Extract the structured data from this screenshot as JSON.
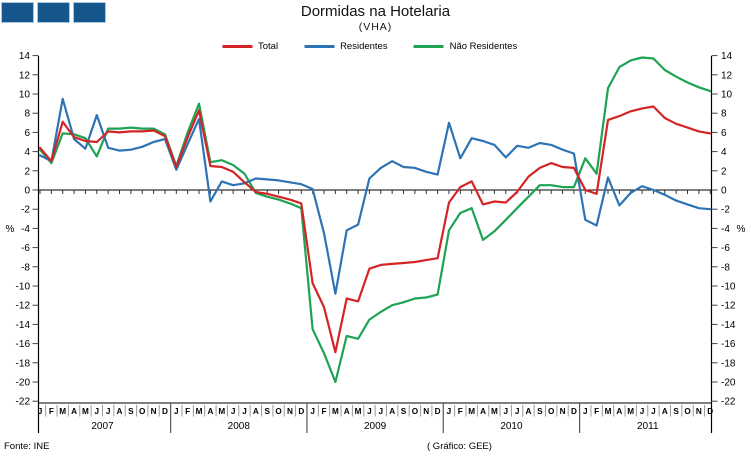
{
  "header": {
    "title": "Dormidas na Hotelaria",
    "subtitle": "(VHA)"
  },
  "legend": [
    {
      "label": "Total",
      "color": "#d42426"
    },
    {
      "label": "Residentes",
      "color": "#2e74b5"
    },
    {
      "label": "Não Residentes",
      "color": "#1ea353"
    }
  ],
  "footer": {
    "source": "Fonte: INE",
    "credit": "( Gráfico: GEE)"
  },
  "decoration": {
    "squares": 3,
    "fill": "#15568d",
    "border": "#a9c7df"
  },
  "chart_data": {
    "type": "line",
    "title": "Dormidas na Hotelaria",
    "subtitle": "(VHA)",
    "ylabel": "%",
    "ylim": [
      -22,
      14
    ],
    "ytick_step": 2,
    "grid": false,
    "legend_position": "top",
    "years": [
      "2007",
      "2008",
      "2009",
      "2010",
      "2011"
    ],
    "month_letters": [
      "J",
      "F",
      "M",
      "A",
      "M",
      "J",
      "J",
      "A",
      "S",
      "O",
      "N",
      "D"
    ],
    "series": [
      {
        "name": "Total",
        "color": "#d42426",
        "values": [
          4.4,
          3.0,
          7.1,
          5.5,
          5.1,
          5.0,
          6.1,
          6.0,
          6.1,
          6.1,
          6.2,
          5.6,
          2.4,
          5.5,
          8.3,
          2.5,
          2.4,
          1.9,
          0.8,
          -0.2,
          -0.4,
          -0.7,
          -1.0,
          -1.4,
          -9.7,
          -12.2,
          -16.9,
          -11.3,
          -11.6,
          -8.2,
          -7.8,
          -7.7,
          -7.6,
          -7.5,
          -7.3,
          -7.1,
          -1.3,
          0.3,
          0.9,
          -1.5,
          -1.2,
          -1.3,
          -0.2,
          1.4,
          2.3,
          2.8,
          2.4,
          2.3,
          0.0,
          -0.4,
          7.3,
          7.7,
          8.2,
          8.5,
          8.7,
          7.5,
          6.9,
          6.5,
          6.1,
          5.9
        ]
      },
      {
        "name": "Residentes",
        "color": "#2e74b5",
        "values": [
          3.6,
          3.0,
          9.5,
          5.3,
          4.3,
          7.8,
          4.4,
          4.1,
          4.2,
          4.5,
          5.0,
          5.3,
          2.1,
          4.8,
          7.4,
          -1.2,
          0.9,
          0.5,
          0.7,
          1.2,
          1.1,
          1.0,
          0.8,
          0.6,
          0.1,
          -4.5,
          -10.8,
          -4.2,
          -3.6,
          1.2,
          2.3,
          3.0,
          2.4,
          2.3,
          1.9,
          1.6,
          7.0,
          3.3,
          5.4,
          5.1,
          4.7,
          3.4,
          4.6,
          4.4,
          4.9,
          4.7,
          4.2,
          3.8,
          -3.1,
          -3.7,
          1.3,
          -1.6,
          -0.3,
          0.4,
          0.0,
          -0.5,
          -1.1,
          -1.5,
          -1.9,
          -2.0
        ]
      },
      {
        "name": "Não Residentes",
        "color": "#1ea353",
        "values": [
          4.2,
          2.8,
          5.9,
          5.8,
          5.4,
          3.5,
          6.4,
          6.4,
          6.5,
          6.4,
          6.4,
          5.8,
          2.5,
          6.0,
          9.0,
          2.9,
          3.1,
          2.6,
          1.7,
          -0.3,
          -0.7,
          -1.0,
          -1.4,
          -1.9,
          -14.5,
          -17.0,
          -20.0,
          -15.2,
          -15.5,
          -13.5,
          -12.7,
          -12.0,
          -11.7,
          -11.3,
          -11.2,
          -10.9,
          -4.2,
          -2.4,
          -1.9,
          -5.2,
          -4.3,
          -3.1,
          -1.9,
          -0.7,
          0.5,
          0.5,
          0.3,
          0.3,
          3.3,
          1.7,
          10.6,
          12.8,
          13.5,
          13.8,
          13.7,
          12.5,
          11.8,
          11.2,
          10.7,
          10.3
        ]
      }
    ]
  }
}
